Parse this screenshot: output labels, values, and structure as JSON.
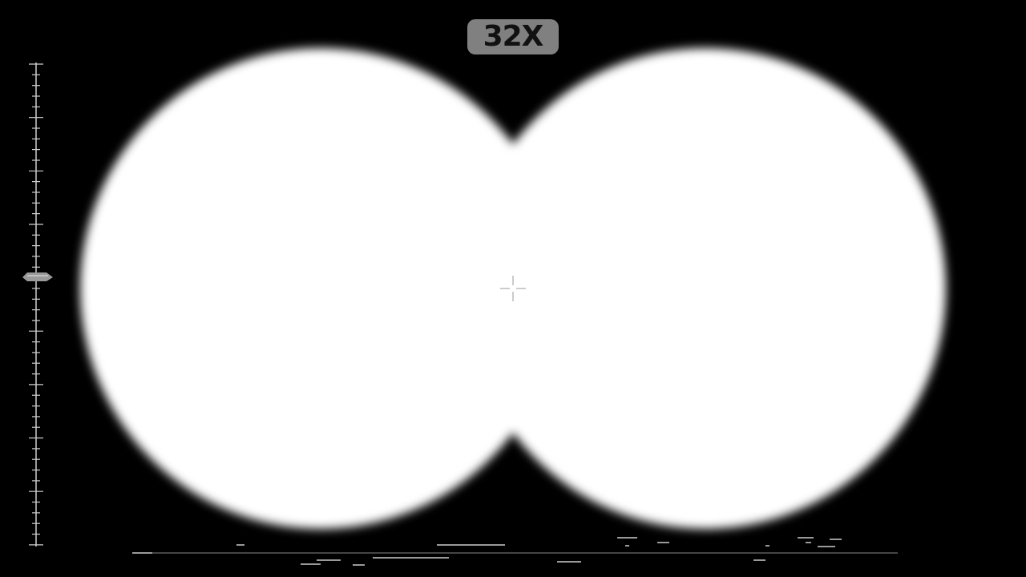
{
  "hud": {
    "zoom_label": "32X"
  },
  "colors": {
    "background": "#000000",
    "lens": "#ffffff",
    "badge": "#808080",
    "badge_text": "#111111",
    "scale_ticks": "#cfcfcf",
    "marker": "#9a9a9a"
  },
  "icons": {
    "reticle": "crosshair-icon",
    "elevation_marker": "scale-marker-icon"
  }
}
